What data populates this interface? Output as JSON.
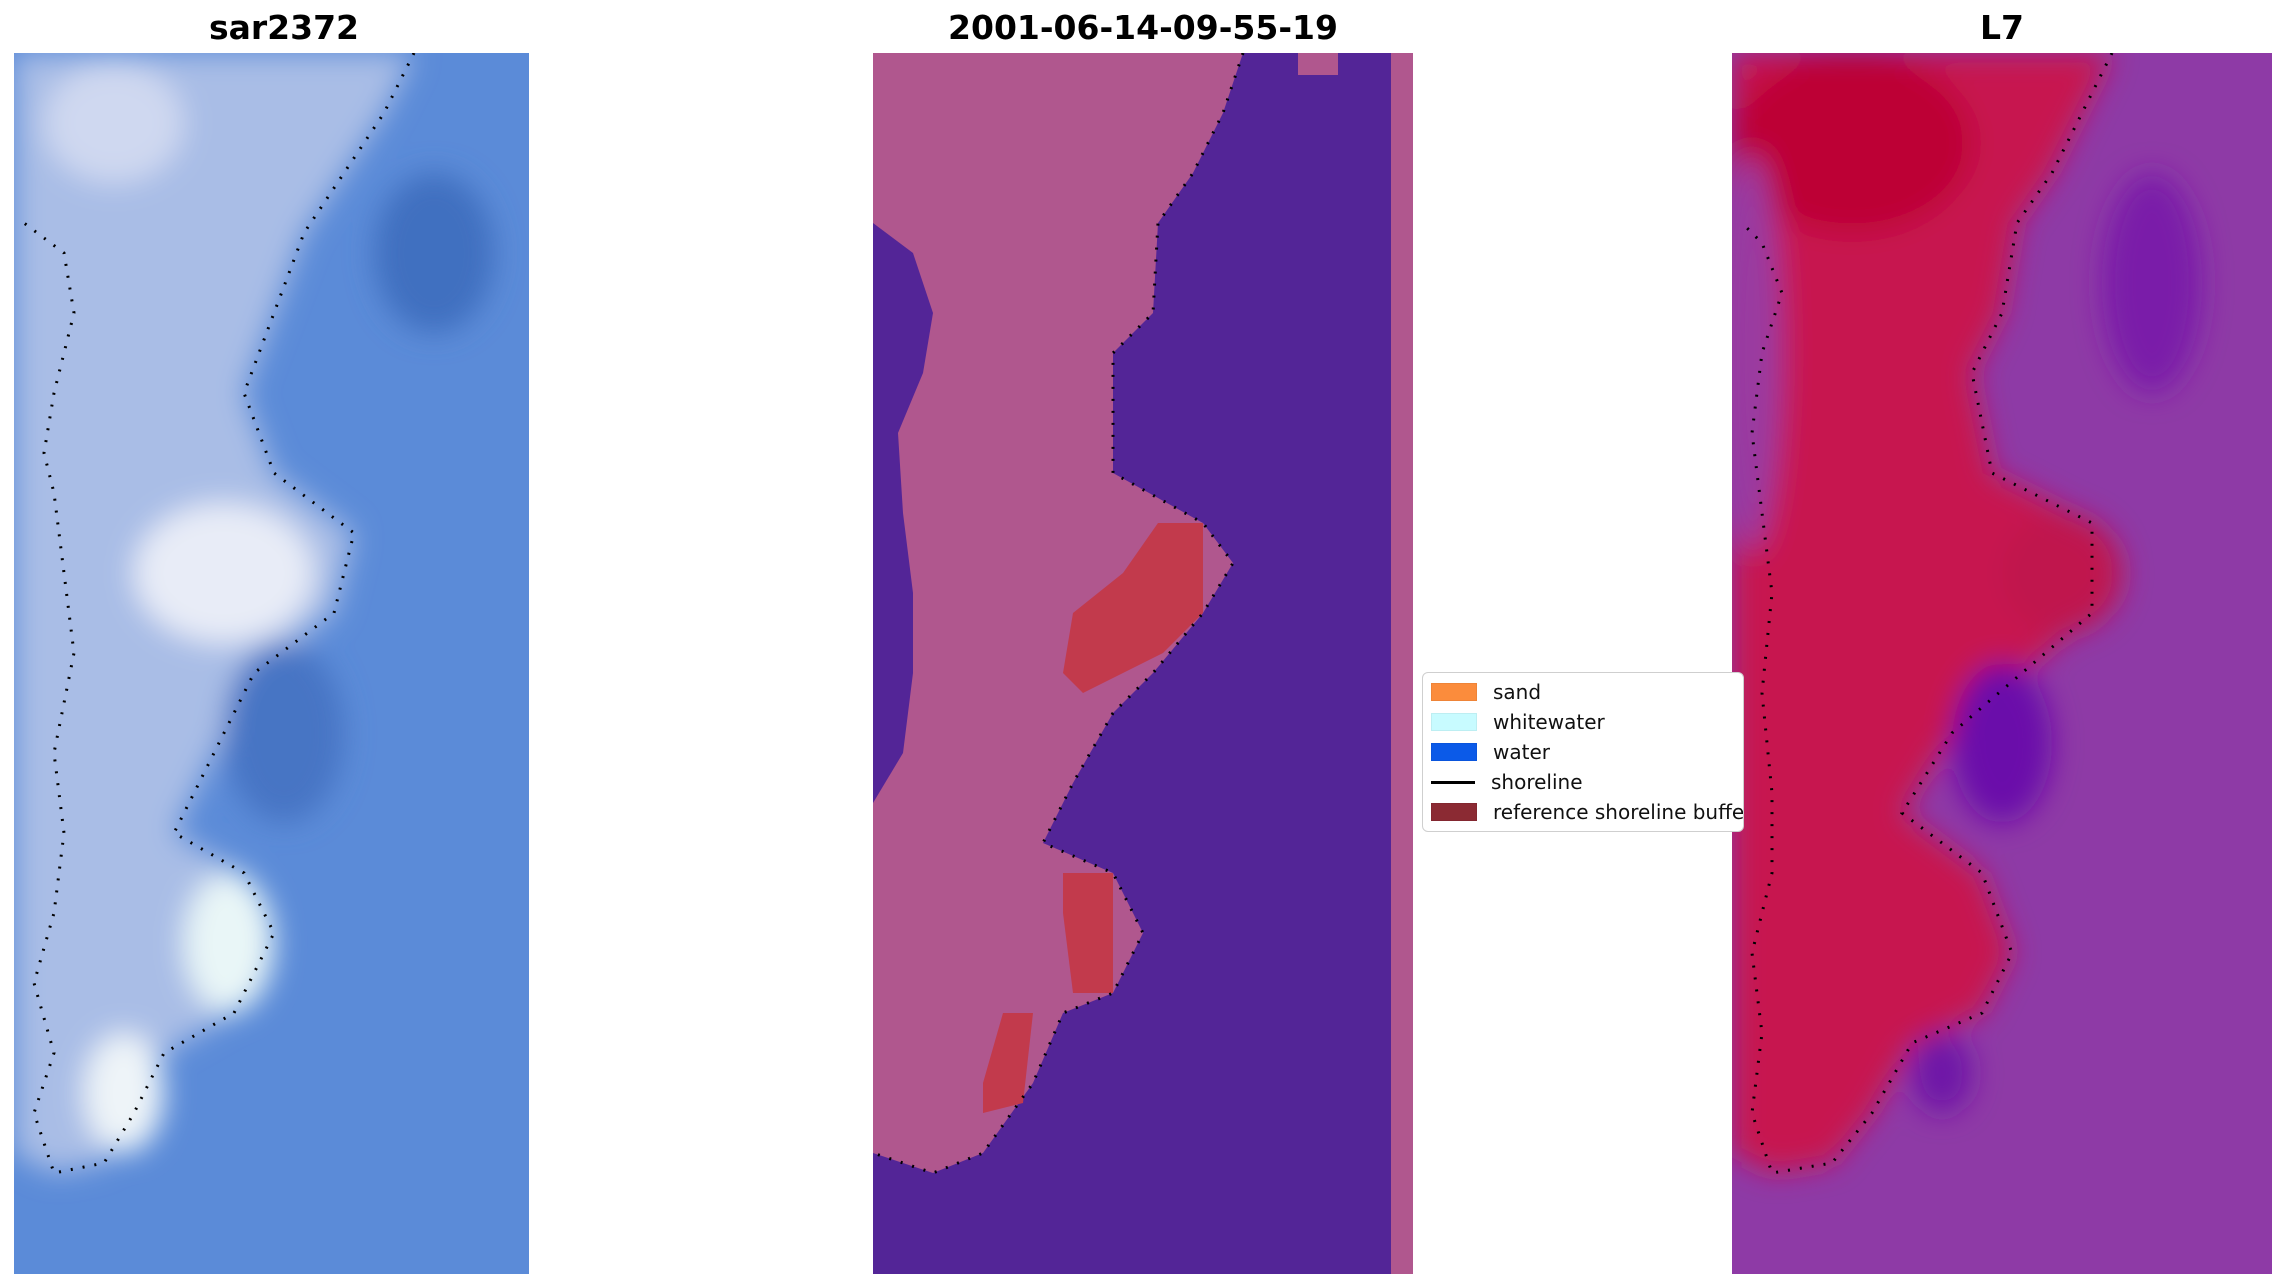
{
  "panels": [
    {
      "id": "rgb",
      "title": "sar2372"
    },
    {
      "id": "classified",
      "title": "2001-06-14-09-55-19"
    },
    {
      "id": "index",
      "title": "L7"
    }
  ],
  "legend": {
    "items": [
      {
        "label": "sand",
        "color": "#fb8c3c",
        "kind": "patch"
      },
      {
        "label": "whitewater",
        "color": "#c8fbff",
        "kind": "patch"
      },
      {
        "label": "water",
        "color": "#0b5ae8",
        "kind": "patch"
      },
      {
        "label": "shoreline",
        "color": "#000000",
        "kind": "line"
      },
      {
        "label": "reference shoreline buffer",
        "color": "#8b2a33",
        "kind": "patch"
      }
    ]
  },
  "colors": {
    "rgb_water": "#5b8bd8",
    "rgb_land": "#a9bde6",
    "class_water": "#532597",
    "class_land": "#b0578e",
    "class_buffer": "#c23a4c",
    "index_water": "#8e3aa6",
    "index_land": "#c7154f"
  }
}
